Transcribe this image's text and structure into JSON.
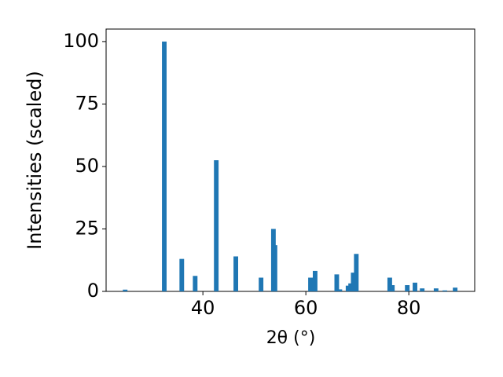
{
  "chart_data": {
    "type": "bar",
    "x_label": "2θ (°)",
    "y_label": "Intensities (scaled)",
    "color": "#1f77b4",
    "x": [
      24.9,
      32.5,
      35.9,
      38.5,
      42.6,
      46.4,
      51.3,
      53.7,
      54.0,
      60.9,
      61.8,
      66.0,
      66.6,
      68.2,
      68.7,
      69.2,
      69.8,
      76.3,
      76.8,
      79.7,
      81.2,
      82.6,
      85.3,
      87.0,
      89.0
    ],
    "values": [
      0.7,
      100,
      13,
      6.2,
      52.5,
      14,
      5.5,
      25,
      18.5,
      5.5,
      8.2,
      6.8,
      0.8,
      2.3,
      3.2,
      7.5,
      15,
      5.5,
      2.5,
      2.5,
      3.5,
      1.2,
      1.2,
      0.4,
      1.5
    ],
    "xlim": [
      21.2,
      92.8
    ],
    "ylim": [
      0,
      105
    ],
    "xticks": [
      40,
      60,
      80
    ],
    "yticks": [
      0,
      25,
      50,
      75,
      100
    ]
  }
}
